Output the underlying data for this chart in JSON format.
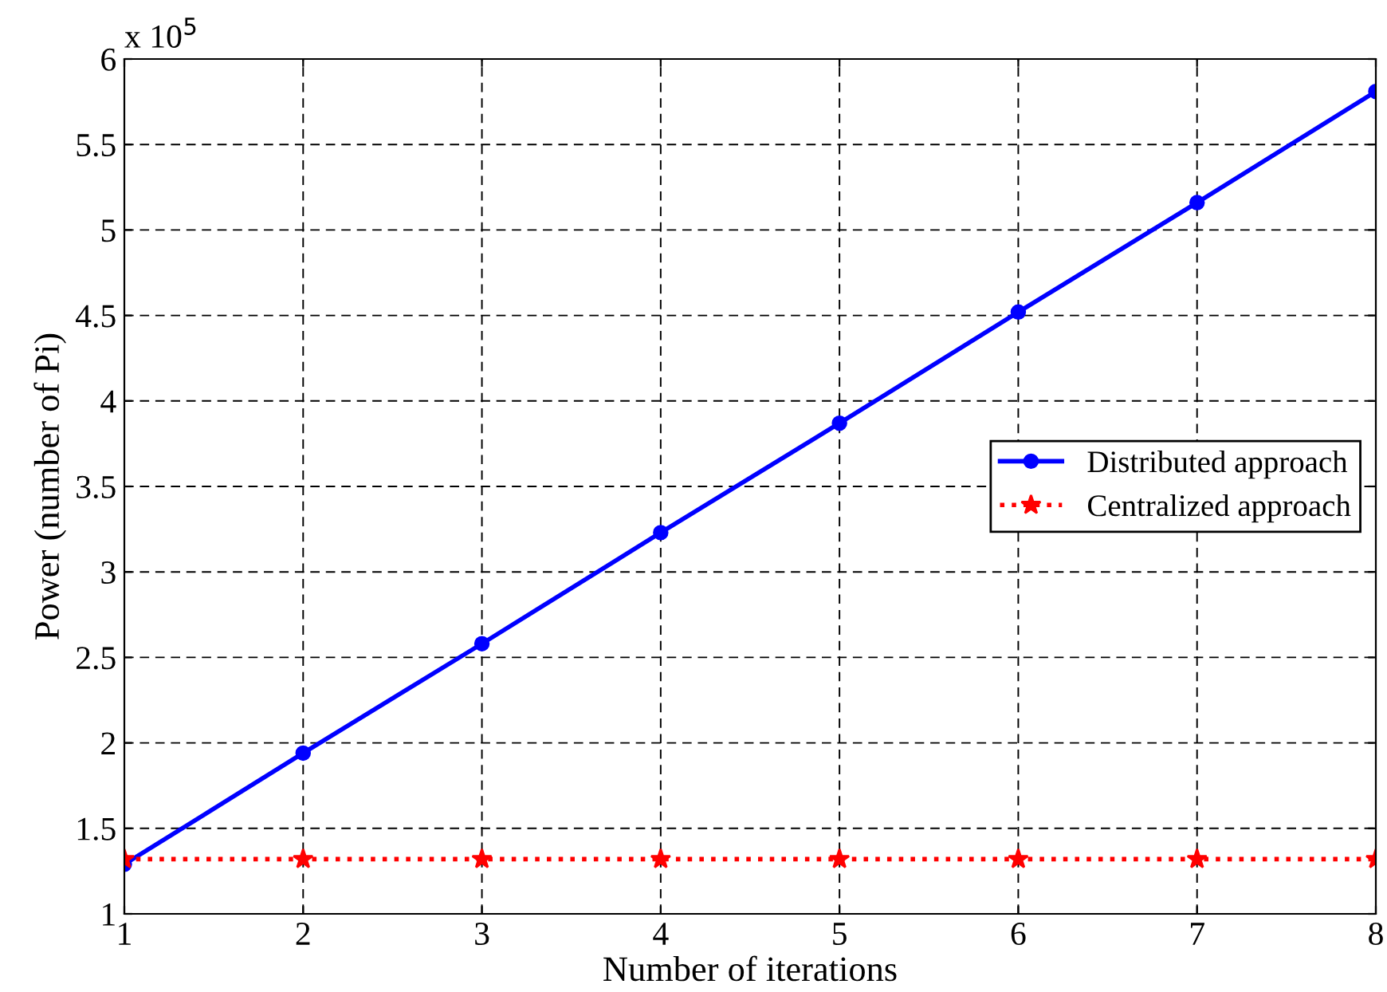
{
  "chart_data": {
    "type": "line",
    "xlabel": "Number of iterations",
    "ylabel": "Power (number of Pi)",
    "annotations": [
      "x 10$^{5}$"
    ],
    "x": [
      1,
      2,
      3,
      4,
      5,
      6,
      7,
      8
    ],
    "series": [
      {
        "name": "Distributed approach",
        "color": "#0000ff",
        "values": [
          1.29,
          1.94,
          2.58,
          3.23,
          3.87,
          4.52,
          5.16,
          5.81
        ],
        "marker": "circle",
        "line_style": "solid"
      },
      {
        "name": "Centralized approach",
        "color": "#ff0000",
        "values": [
          1.32,
          1.32,
          1.32,
          1.32,
          1.32,
          1.32,
          1.32,
          1.32
        ],
        "marker": "star",
        "line_style": "dotted"
      }
    ],
    "xlim": [
      1,
      8
    ],
    "xticks": [
      1,
      2,
      3,
      4,
      5,
      6,
      7,
      8
    ],
    "ylim": [
      1,
      6
    ],
    "yticks": [
      1,
      1.5,
      2,
      2.5,
      3,
      3.5,
      4,
      4.5,
      5,
      5.5,
      6
    ],
    "grid": true,
    "legend": "right"
  }
}
